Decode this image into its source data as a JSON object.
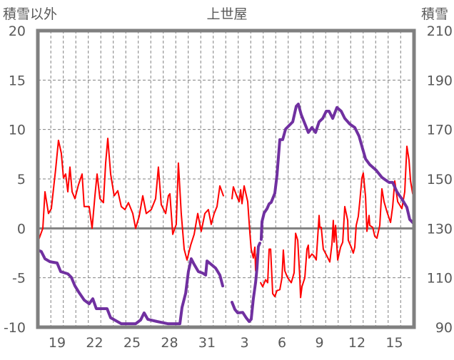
{
  "chart_data": {
    "type": "line",
    "title": "上世屋",
    "ylabel_left": "積雪以外",
    "ylabel_right": "積雪",
    "x_unit": "days from first labeled day (19)",
    "xlim": [
      -1.54,
      28.57
    ],
    "ylim_left": [
      -10,
      20
    ],
    "ylim_right": [
      90,
      210
    ],
    "yticks_left": [
      20,
      15,
      10,
      5,
      0,
      -5,
      -10
    ],
    "yticks_right": [
      210,
      190,
      170,
      150,
      130,
      110,
      90
    ],
    "xticks": [
      {
        "pos": 0,
        "label": "19"
      },
      {
        "pos": 3,
        "label": "22"
      },
      {
        "pos": 6,
        "label": "25"
      },
      {
        "pos": 9,
        "label": "28"
      },
      {
        "pos": 12,
        "label": "31"
      },
      {
        "pos": 15,
        "label": "3"
      },
      {
        "pos": 18,
        "label": "6"
      },
      {
        "pos": 21,
        "label": "9"
      },
      {
        "pos": 24,
        "label": "12"
      },
      {
        "pos": 27,
        "label": "15"
      }
    ],
    "grid": true,
    "colors": {
      "text": "#595959",
      "frame": "#808080",
      "grid": "#808080",
      "temp": "#ff0000",
      "snow": "#7030a0"
    },
    "series": [
      {
        "name": "積雪以外",
        "axis": "left",
        "color": "#ff0000",
        "points": [
          [
            -1.54,
            -1.4
          ],
          [
            -1.14,
            0
          ],
          [
            -0.97,
            3.7
          ],
          [
            -0.69,
            1.5
          ],
          [
            -0.46,
            2
          ],
          [
            -0.11,
            6
          ],
          [
            0.11,
            8.9
          ],
          [
            0.34,
            7.6
          ],
          [
            0.51,
            5.1
          ],
          [
            0.69,
            5.5
          ],
          [
            0.86,
            3.7
          ],
          [
            1.03,
            6.2
          ],
          [
            1.2,
            3.7
          ],
          [
            1.43,
            3
          ],
          [
            1.71,
            4.4
          ],
          [
            2.0,
            5.5
          ],
          [
            2.17,
            2.2
          ],
          [
            2.57,
            2.2
          ],
          [
            2.8,
            0
          ],
          [
            3.03,
            3.3
          ],
          [
            3.2,
            5.5
          ],
          [
            3.43,
            3
          ],
          [
            3.71,
            2.6
          ],
          [
            3.89,
            6.6
          ],
          [
            4.06,
            9.1
          ],
          [
            4.29,
            5.5
          ],
          [
            4.57,
            3.3
          ],
          [
            4.86,
            3.8
          ],
          [
            5.14,
            2.2
          ],
          [
            5.43,
            1.9
          ],
          [
            5.71,
            2.6
          ],
          [
            6.06,
            1.5
          ],
          [
            6.29,
            0
          ],
          [
            6.57,
            1.2
          ],
          [
            6.86,
            3.3
          ],
          [
            7.14,
            1.5
          ],
          [
            7.54,
            1.9
          ],
          [
            7.89,
            3
          ],
          [
            8.11,
            6.2
          ],
          [
            8.34,
            2.4
          ],
          [
            8.69,
            1.5
          ],
          [
            8.91,
            3.3
          ],
          [
            9.03,
            3.5
          ],
          [
            9.26,
            -0.6
          ],
          [
            9.54,
            0.4
          ],
          [
            9.71,
            6.6
          ],
          [
            9.94,
            1.5
          ],
          [
            10.17,
            -2.1
          ],
          [
            10.4,
            -3.2
          ],
          [
            10.69,
            -1.7
          ],
          [
            10.97,
            -0.6
          ],
          [
            11.26,
            1.5
          ],
          [
            11.54,
            -0.3
          ],
          [
            11.83,
            1.5
          ],
          [
            12.11,
            1.9
          ],
          [
            12.34,
            0.4
          ],
          [
            12.57,
            1.5
          ],
          [
            12.8,
            2.2
          ],
          [
            13.03,
            4.3
          ],
          [
            13.31,
            3.3
          ],
          null,
          [
            14.0,
            3
          ],
          [
            14.11,
            4.2
          ],
          [
            14.4,
            3.2
          ],
          [
            14.57,
            2.7
          ],
          [
            14.69,
            3.9
          ],
          [
            14.8,
            2.5
          ],
          [
            14.97,
            4.3
          ],
          [
            15.26,
            2.7
          ],
          [
            15.43,
            -0.4
          ],
          [
            15.54,
            -2.1
          ],
          [
            15.71,
            -3
          ],
          [
            15.83,
            -1.9
          ],
          [
            15.89,
            -4.3
          ],
          [
            16.0,
            -2.6
          ],
          null,
          [
            16.29,
            -5.5
          ],
          [
            16.46,
            -5.9
          ],
          [
            16.69,
            -5.2
          ],
          [
            16.86,
            -5.5
          ],
          [
            16.97,
            -2.1
          ],
          [
            17.09,
            -2.1
          ],
          [
            17.26,
            -6.6
          ],
          [
            17.43,
            -6.9
          ],
          [
            17.6,
            -6.3
          ],
          [
            17.83,
            -6.2
          ],
          [
            18.0,
            -5
          ],
          [
            18.11,
            -2.2
          ],
          [
            18.23,
            -4.3
          ],
          [
            18.46,
            -5
          ],
          [
            18.74,
            -5.5
          ],
          [
            18.97,
            -4.5
          ],
          [
            19.09,
            -0.5
          ],
          [
            19.26,
            -1.2
          ],
          [
            19.43,
            -5
          ],
          [
            19.49,
            -7
          ],
          [
            19.6,
            -5.9
          ],
          [
            19.83,
            -5
          ],
          [
            20.0,
            -2.1
          ],
          [
            20.11,
            -1.7
          ],
          [
            20.17,
            -3
          ],
          [
            20.4,
            -2.6
          ],
          [
            20.57,
            -2.8
          ],
          [
            20.74,
            -3.2
          ],
          [
            20.97,
            1.3
          ],
          [
            21.03,
            0.1
          ],
          [
            21.14,
            0.1
          ],
          [
            21.31,
            -2.1
          ],
          [
            21.6,
            -2.8
          ],
          [
            21.83,
            -3.4
          ],
          [
            22.0,
            -1.6
          ],
          [
            22.11,
            0.8
          ],
          [
            22.17,
            -1.4
          ],
          [
            22.29,
            0.3
          ],
          [
            22.46,
            -3.2
          ],
          [
            22.69,
            -1.9
          ],
          [
            22.86,
            -1.4
          ],
          [
            23.03,
            2.2
          ],
          [
            23.26,
            0.8
          ],
          [
            23.31,
            -1.2
          ],
          [
            23.54,
            -1.9
          ],
          [
            23.71,
            -2.5
          ],
          [
            23.83,
            -1.9
          ],
          [
            23.94,
            0.3
          ],
          [
            24.11,
            1.2
          ],
          [
            24.23,
            2.7
          ],
          [
            24.4,
            5.1
          ],
          [
            24.51,
            5.6
          ],
          [
            24.69,
            3.2
          ],
          [
            24.8,
            -0.3
          ],
          [
            24.97,
            1.3
          ],
          [
            25.03,
            0.3
          ],
          [
            25.26,
            0.1
          ],
          [
            25.43,
            -0.8
          ],
          [
            25.6,
            -1
          ],
          [
            25.83,
            0.3
          ],
          [
            26.0,
            4
          ],
          [
            26.17,
            2.7
          ],
          [
            26.4,
            1.7
          ],
          [
            26.69,
            0.6
          ],
          [
            26.86,
            2.2
          ],
          [
            27.03,
            4.8
          ],
          [
            27.26,
            2.7
          ],
          [
            27.6,
            2
          ],
          [
            27.83,
            3.7
          ],
          [
            28.0,
            8.3
          ],
          [
            28.17,
            6.9
          ],
          [
            28.29,
            4.8
          ],
          [
            28.46,
            3.5
          ]
        ]
      },
      {
        "name": "積雪",
        "axis": "right",
        "color": "#7030a0",
        "points": [
          [
            -1.54,
            121.2
          ],
          [
            -1.26,
            120.6
          ],
          [
            -0.97,
            117.7
          ],
          [
            -0.57,
            116.5
          ],
          [
            0,
            116
          ],
          [
            0.29,
            112.5
          ],
          [
            0.86,
            111.6
          ],
          [
            1.14,
            110.2
          ],
          [
            1.43,
            106.7
          ],
          [
            1.71,
            104.4
          ],
          [
            2.17,
            101
          ],
          [
            2.57,
            99.5
          ],
          [
            2.86,
            101.5
          ],
          [
            3.14,
            97.5
          ],
          [
            4.0,
            97.5
          ],
          [
            4.29,
            93.8
          ],
          [
            5.14,
            91.4
          ],
          [
            6.29,
            91.4
          ],
          [
            6.69,
            92.9
          ],
          [
            6.97,
            95.8
          ],
          [
            7.26,
            93.2
          ],
          [
            8.0,
            92.3
          ],
          [
            8.86,
            91.4
          ],
          [
            9.83,
            91.4
          ],
          [
            10.0,
            98
          ],
          [
            10.29,
            103.8
          ],
          [
            10.51,
            112.5
          ],
          [
            10.74,
            117.7
          ],
          [
            10.97,
            115.4
          ],
          [
            11.31,
            112.5
          ],
          [
            11.66,
            111.9
          ],
          [
            11.89,
            111.1
          ],
          [
            12.0,
            116.8
          ],
          [
            12.34,
            115.4
          ],
          [
            12.69,
            113.9
          ],
          [
            13.03,
            111.1
          ],
          [
            13.26,
            106.7
          ],
          null,
          [
            14.0,
            100.1
          ],
          [
            14.23,
            97.2
          ],
          [
            14.46,
            95.8
          ],
          [
            14.86,
            96
          ],
          [
            15.14,
            93.8
          ],
          [
            15.37,
            92.3
          ],
          [
            15.54,
            93.2
          ],
          [
            15.71,
            101.5
          ],
          [
            15.89,
            108.2
          ],
          [
            16.0,
            113.9
          ],
          [
            16.11,
            122.6
          ],
          [
            16.23,
            124
          ],
          null,
          [
            16.34,
            125.5
          ],
          [
            16.4,
            132.7
          ],
          [
            16.57,
            136.2
          ],
          [
            16.8,
            137.9
          ],
          [
            16.97,
            139.9
          ],
          [
            17.14,
            140.5
          ],
          [
            17.43,
            144.2
          ],
          [
            17.6,
            151.4
          ],
          [
            17.83,
            165.9
          ],
          [
            18.06,
            165.9
          ],
          [
            18.29,
            170.2
          ],
          [
            18.57,
            171.6
          ],
          [
            18.86,
            173.1
          ],
          [
            19.14,
            179.4
          ],
          [
            19.31,
            180.3
          ],
          [
            19.54,
            176
          ],
          [
            19.89,
            171.6
          ],
          [
            20.11,
            168.8
          ],
          [
            20.4,
            170.8
          ],
          [
            20.69,
            168.8
          ],
          [
            20.97,
            173.1
          ],
          [
            21.26,
            174.5
          ],
          [
            21.54,
            177.4
          ],
          [
            21.77,
            177.4
          ],
          [
            22.06,
            174.5
          ],
          [
            22.4,
            178.9
          ],
          [
            22.74,
            177.4
          ],
          [
            23.03,
            174.5
          ],
          [
            23.43,
            172.2
          ],
          [
            23.83,
            170.8
          ],
          [
            24.17,
            167.3
          ],
          [
            24.46,
            162.1
          ],
          [
            24.69,
            158.1
          ],
          [
            25.03,
            155.8
          ],
          [
            25.54,
            153.5
          ],
          [
            26.0,
            150.6
          ],
          [
            26.57,
            148.6
          ],
          [
            26.86,
            148.6
          ],
          [
            27.2,
            144.8
          ],
          [
            27.6,
            141.9
          ],
          [
            28.0,
            138.5
          ],
          [
            28.23,
            133.6
          ],
          [
            28.57,
            131.8
          ]
        ]
      }
    ]
  }
}
